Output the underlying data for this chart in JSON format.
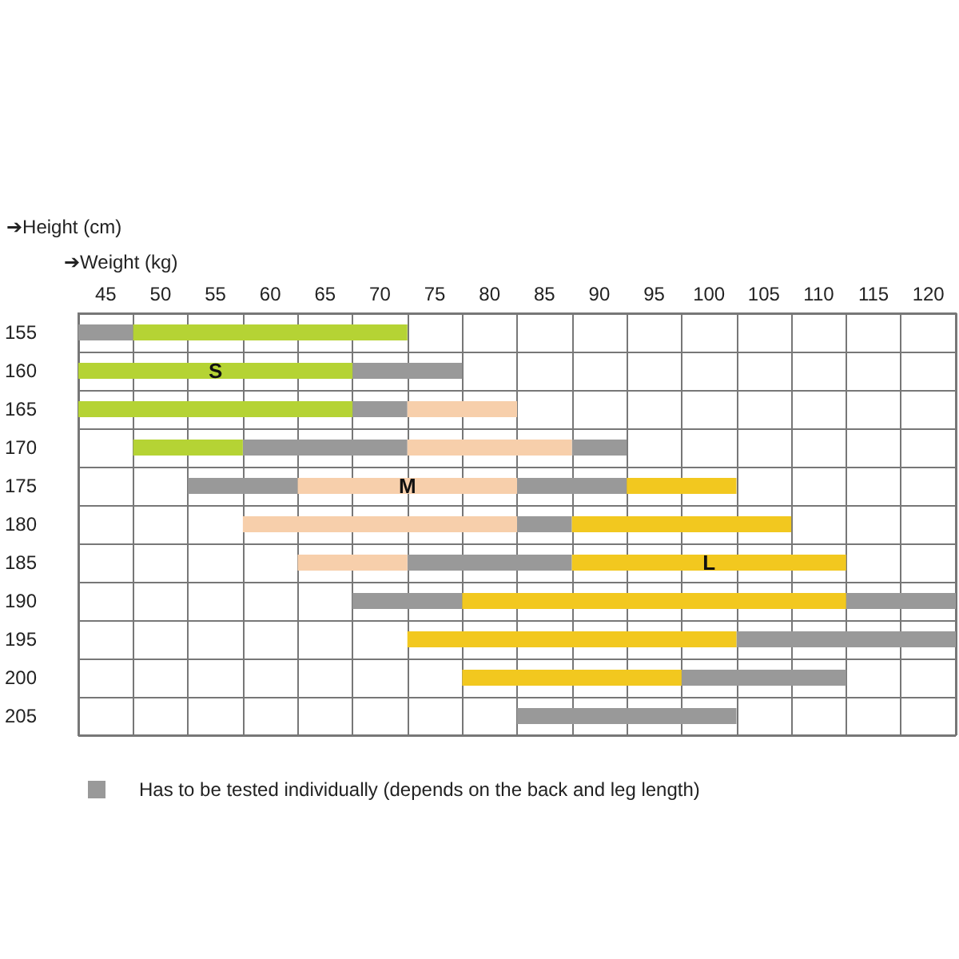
{
  "chart_data": {
    "type": "bar",
    "orientation": "horizontal",
    "xlabel": "➔Weight (kg)",
    "ylabel": "➔Height (cm)",
    "categories": [
      "155",
      "160",
      "165",
      "170",
      "175",
      "180",
      "185",
      "190",
      "195",
      "200",
      "205"
    ],
    "xlim": [
      42.5,
      122.5
    ],
    "xticks": [
      45,
      50,
      55,
      60,
      65,
      70,
      75,
      80,
      85,
      90,
      95,
      100,
      105,
      110,
      115,
      120
    ],
    "grid": true,
    "legend": "bottom",
    "series": [
      {
        "name": "Has to be tested individually (depends on the back and leg length)",
        "color": "#999999",
        "base": [
          42.5,
          67.5,
          67.5,
          57.5,
          52.5,
          82.5,
          72.5,
          67.5,
          102.5,
          97.5,
          82.5
        ],
        "values": [
          5,
          10,
          5,
          15,
          10,
          5,
          15,
          10,
          20,
          15,
          20
        ]
      },
      {
        "color": "#999999",
        "base": [
          null,
          null,
          null,
          87.5,
          82.5,
          null,
          null,
          112.5,
          null,
          null,
          null
        ],
        "values": [
          null,
          null,
          null,
          5,
          10,
          null,
          null,
          10,
          null,
          null,
          null
        ]
      },
      {
        "name": "S",
        "color": "#b5d334",
        "base": [
          47.5,
          42.5,
          42.5,
          47.5,
          null,
          null,
          null,
          null,
          null,
          null,
          null
        ],
        "values": [
          25,
          25,
          25,
          10,
          null,
          null,
          null,
          null,
          null,
          null,
          null
        ]
      },
      {
        "name": "M",
        "color": "#f7cfab",
        "base": [
          null,
          null,
          72.5,
          72.5,
          62.5,
          57.5,
          62.5,
          null,
          null,
          null,
          null
        ],
        "values": [
          null,
          null,
          10,
          15,
          20,
          25,
          10,
          null,
          null,
          null,
          null
        ]
      },
      {
        "name": "L",
        "color": "#f2c81f",
        "base": [
          null,
          null,
          null,
          null,
          92.5,
          87.5,
          87.5,
          77.5,
          72.5,
          77.5,
          null
        ],
        "values": [
          null,
          null,
          null,
          null,
          10,
          20,
          25,
          35,
          30,
          20,
          null
        ]
      }
    ]
  }
}
